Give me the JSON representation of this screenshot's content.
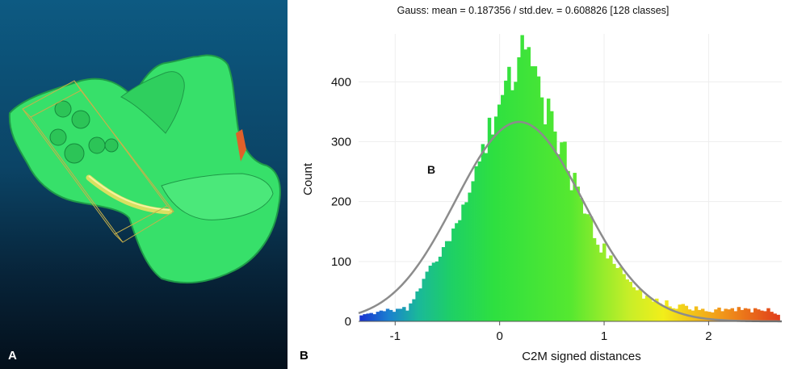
{
  "panels": {
    "left_label": "A",
    "right_label": "B"
  },
  "colors": {
    "mesh": "#37e06a",
    "bbox": "#c8b04a",
    "curve": "#8c8c8c"
  },
  "chart_data": {
    "type": "bar",
    "title": "Gauss: mean = 0.187356 / std.dev. = 0.608826 [128 classes]",
    "xlabel": "C2M signed distances",
    "ylabel": "Count",
    "annotation": "B",
    "xlim": [
      -1.35,
      2.7
    ],
    "ylim": [
      0,
      480
    ],
    "xticks": [
      -1,
      0,
      1,
      2
    ],
    "yticks": [
      0,
      100,
      200,
      300,
      400
    ],
    "bin_start": -1.34,
    "bin_width": 0.03141,
    "values": [
      10,
      12,
      13,
      14,
      12,
      16,
      18,
      17,
      21,
      19,
      16,
      21,
      21,
      24,
      18,
      30,
      37,
      50,
      55,
      71,
      83,
      93,
      98,
      100,
      108,
      124,
      134,
      134,
      155,
      164,
      169,
      195,
      199,
      215,
      234,
      259,
      267,
      296,
      281,
      340,
      312,
      342,
      362,
      378,
      402,
      425,
      386,
      400,
      441,
      478,
      454,
      458,
      426,
      426,
      409,
      374,
      329,
      372,
      351,
      317,
      279,
      299,
      300,
      251,
      219,
      248,
      225,
      206,
      180,
      179,
      175,
      139,
      128,
      115,
      130,
      105,
      110,
      96,
      89,
      91,
      79,
      70,
      66,
      57,
      52,
      54,
      38,
      43,
      39,
      33,
      38,
      30,
      26,
      35,
      25,
      22,
      21,
      28,
      29,
      26,
      20,
      18,
      25,
      19,
      21,
      17,
      16,
      15,
      20,
      23,
      17,
      21,
      20,
      22,
      17,
      24,
      19,
      22,
      21,
      15,
      22,
      20,
      18,
      17,
      22,
      16,
      13,
      11
    ],
    "gauss": {
      "mean": 0.187356,
      "std": 0.608826,
      "peak": 333
    }
  }
}
